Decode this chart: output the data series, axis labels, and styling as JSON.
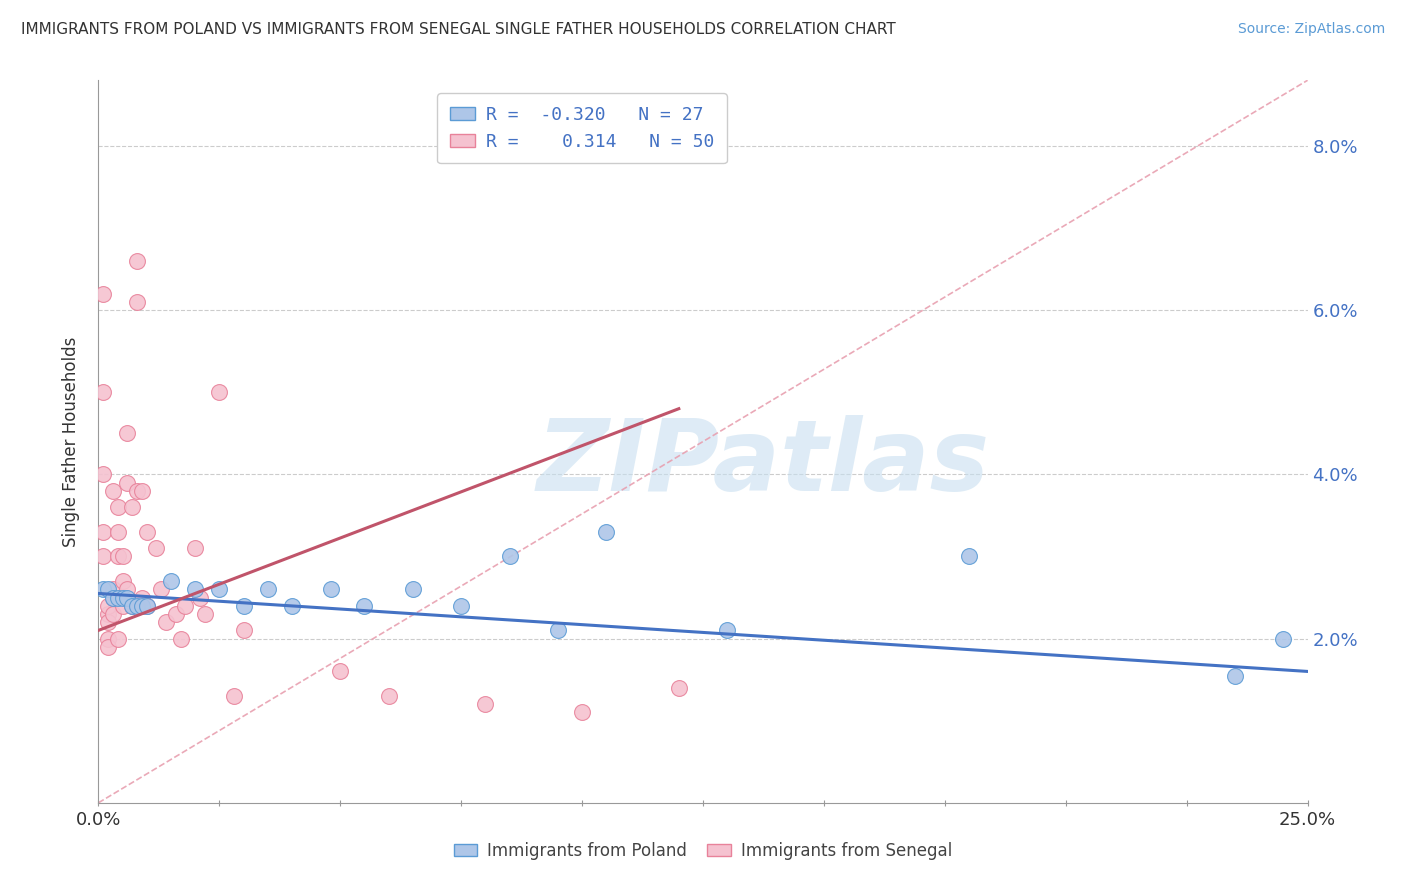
{
  "title": "IMMIGRANTS FROM POLAND VS IMMIGRANTS FROM SENEGAL SINGLE FATHER HOUSEHOLDS CORRELATION CHART",
  "source": "Source: ZipAtlas.com",
  "ylabel": "Single Father Households",
  "legend_poland_r": "-0.320",
  "legend_poland_n": "27",
  "legend_senegal_r": "0.314",
  "legend_senegal_n": "50",
  "yticks_labels": [
    "2.0%",
    "4.0%",
    "6.0%",
    "8.0%"
  ],
  "ytick_vals": [
    0.02,
    0.04,
    0.06,
    0.08
  ],
  "xlim": [
    0.0,
    0.25
  ],
  "ylim": [
    0.0,
    0.088
  ],
  "watermark": "ZIPatlas",
  "poland_fill_color": "#aec6e8",
  "senegal_fill_color": "#f5c2d0",
  "poland_edge_color": "#5b9bd5",
  "senegal_edge_color": "#e8829a",
  "poland_line_color": "#4472c4",
  "senegal_line_color": "#c0546a",
  "diag_line_color": "#e8a0b0",
  "poland_trend_x": [
    0.0,
    0.25
  ],
  "poland_trend_y": [
    0.0255,
    0.016
  ],
  "senegal_trend_x": [
    0.0,
    0.12
  ],
  "senegal_trend_y": [
    0.021,
    0.048
  ],
  "diag_trend_x": [
    0.0,
    0.25
  ],
  "diag_trend_y": [
    0.0,
    0.088
  ],
  "poland_scatter_x": [
    0.001,
    0.002,
    0.003,
    0.004,
    0.005,
    0.006,
    0.007,
    0.008,
    0.009,
    0.01,
    0.015,
    0.02,
    0.025,
    0.03,
    0.035,
    0.04,
    0.048,
    0.055,
    0.065,
    0.075,
    0.085,
    0.095,
    0.105,
    0.13,
    0.18,
    0.235,
    0.245
  ],
  "poland_scatter_y": [
    0.026,
    0.026,
    0.025,
    0.025,
    0.025,
    0.025,
    0.024,
    0.024,
    0.024,
    0.024,
    0.027,
    0.026,
    0.026,
    0.024,
    0.026,
    0.024,
    0.026,
    0.024,
    0.026,
    0.024,
    0.03,
    0.021,
    0.033,
    0.021,
    0.03,
    0.0155,
    0.02
  ],
  "senegal_scatter_x": [
    0.001,
    0.001,
    0.001,
    0.001,
    0.001,
    0.002,
    0.002,
    0.002,
    0.002,
    0.002,
    0.003,
    0.003,
    0.003,
    0.003,
    0.004,
    0.004,
    0.004,
    0.004,
    0.005,
    0.005,
    0.005,
    0.006,
    0.006,
    0.006,
    0.007,
    0.007,
    0.008,
    0.008,
    0.008,
    0.009,
    0.009,
    0.01,
    0.01,
    0.012,
    0.013,
    0.014,
    0.016,
    0.017,
    0.018,
    0.02,
    0.021,
    0.022,
    0.025,
    0.028,
    0.03,
    0.05,
    0.06,
    0.08,
    0.1,
    0.12
  ],
  "senegal_scatter_y": [
    0.03,
    0.033,
    0.04,
    0.05,
    0.062,
    0.023,
    0.024,
    0.022,
    0.02,
    0.019,
    0.023,
    0.026,
    0.038,
    0.025,
    0.036,
    0.033,
    0.03,
    0.02,
    0.03,
    0.027,
    0.024,
    0.045,
    0.039,
    0.026,
    0.036,
    0.024,
    0.061,
    0.066,
    0.038,
    0.038,
    0.025,
    0.024,
    0.033,
    0.031,
    0.026,
    0.022,
    0.023,
    0.02,
    0.024,
    0.031,
    0.025,
    0.023,
    0.05,
    0.013,
    0.021,
    0.016,
    0.013,
    0.012,
    0.011,
    0.014
  ]
}
